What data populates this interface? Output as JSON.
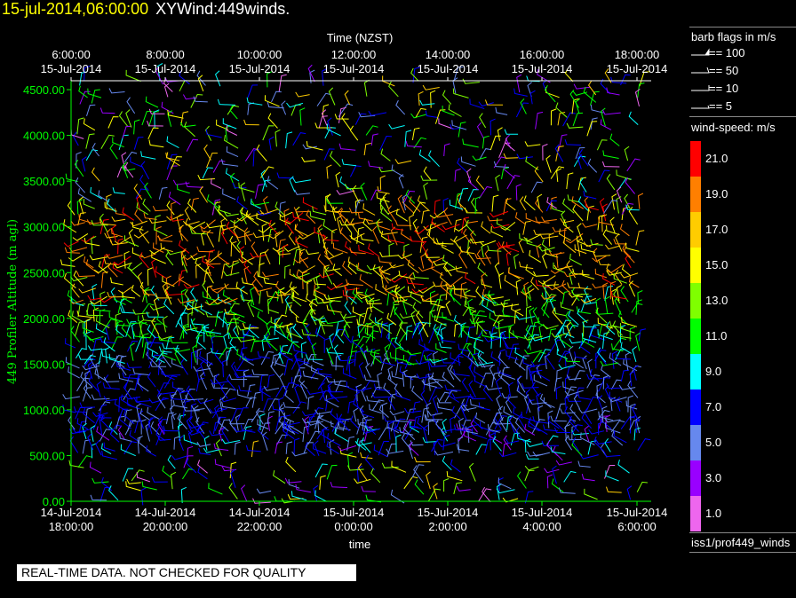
{
  "header": {
    "date": "15-jul-2014,06:00:00",
    "label": "XYWind:449winds."
  },
  "footer": {
    "quality": "REAL-TIME DATA. NOT CHECKED FOR QUALITY"
  },
  "legend": {
    "barb_title": "barb flags in m/s",
    "barb_flags": [
      "== 100",
      "== 50",
      "== 10",
      "== 5"
    ],
    "speed_title": "wind-speed: m/s",
    "speed_labels": [
      "21.0",
      "19.0",
      "17.0",
      "15.0",
      "13.0",
      "11.0",
      "9.0",
      "7.0",
      "5.0",
      "3.0",
      "1.0"
    ],
    "speed_colors": [
      "#ff0000",
      "#ff7f00",
      "#ffcc00",
      "#ffff00",
      "#7fff00",
      "#00ff00",
      "#00ffff",
      "#0000ff",
      "#6688ee",
      "#9900ff",
      "#ee66ee"
    ],
    "source": "iss1/prof449_winds"
  },
  "chart_data": {
    "type": "scatter",
    "title": "",
    "xlabel": "time",
    "x2label": "Time (NZST)",
    "ylabel": "449 Profiler Altitude (m agl)",
    "ylim": [
      0,
      4600
    ],
    "yticks": [
      "0.00",
      "500.00",
      "1000.00",
      "1500.00",
      "2000.00",
      "2500.00",
      "3000.00",
      "3500.00",
      "4000.00",
      "4500.00"
    ],
    "xticks_bottom": [
      [
        "14-Jul-2014",
        "18:00:00"
      ],
      [
        "14-Jul-2014",
        "20:00:00"
      ],
      [
        "14-Jul-2014",
        "22:00:00"
      ],
      [
        "15-Jul-2014",
        "0:00:00"
      ],
      [
        "15-Jul-2014",
        "2:00:00"
      ],
      [
        "15-Jul-2014",
        "4:00:00"
      ],
      [
        "15-Jul-2014",
        "6:00:00"
      ]
    ],
    "xticks_top": [
      [
        "6:00:00",
        "15-Jul-2014"
      ],
      [
        "8:00:00",
        "15-Jul-2014"
      ],
      [
        "10:00:00",
        "15-Jul-2014"
      ],
      [
        "12:00:00",
        "15-Jul-2014"
      ],
      [
        "14:00:00",
        "15-Jul-2014"
      ],
      [
        "16:00:00",
        "15-Jul-2014"
      ],
      [
        "18:00:00",
        "15-Jul-2014"
      ]
    ],
    "grid": false,
    "bands": [
      {
        "alt": [
          0,
          500
        ],
        "speed": 9,
        "spread": 8,
        "density": 0.35
      },
      {
        "alt": [
          500,
          800
        ],
        "speed": 6,
        "spread": 3,
        "density": 0.9
      },
      {
        "alt": [
          800,
          1500
        ],
        "speed": 6,
        "spread": 2,
        "density": 1.0
      },
      {
        "alt": [
          1500,
          1800
        ],
        "speed": 9,
        "spread": 3,
        "density": 1.0
      },
      {
        "alt": [
          1800,
          2200
        ],
        "speed": 12,
        "spread": 3,
        "density": 1.0
      },
      {
        "alt": [
          2200,
          3200
        ],
        "speed": 17,
        "spread": 4,
        "density": 0.9
      },
      {
        "alt": [
          3200,
          4600
        ],
        "speed": 9,
        "spread": 8,
        "density": 0.4
      }
    ]
  }
}
